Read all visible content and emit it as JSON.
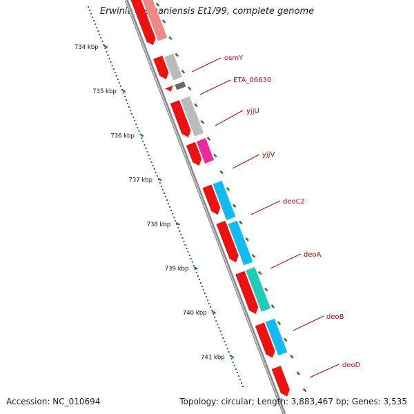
{
  "title": "Erwinia tasmaniensis Et1/99, complete genome",
  "footer": {
    "accession": "Accession: NC_010694",
    "topology": "Topology: circular; Length: 3,883,467 bp; Genes: 3,535"
  },
  "colors": {
    "forward_strand": "#ee1111",
    "backbone": "#8a8a8a",
    "tick": "#1e7a1e",
    "label": "#cc0000",
    "gene_light_red": "#f08888",
    "gene_grey": "#bbbbbb",
    "gene_dark_grey": "#666666",
    "gene_magenta": "#ee2a9a",
    "gene_cyan": "#11bbee",
    "gene_teal": "#22ccbb"
  },
  "kbp_ticks": [
    "734 kbp",
    "735 kbp",
    "736 kbp",
    "737 kbp",
    "738 kbp",
    "739 kbp",
    "740 kbp",
    "741 kbp"
  ],
  "genes": [
    {
      "name": "osmY",
      "color": "#bbbbbb"
    },
    {
      "name": "ETA_06630",
      "color": "#666666"
    },
    {
      "name": "yjjU",
      "color": "#bbbbbb"
    },
    {
      "name": "yjjV",
      "color": "#ee2a9a"
    },
    {
      "name": "deoC2",
      "color": "#11bbee"
    },
    {
      "name": "deoA",
      "color": "#11bbee"
    },
    {
      "name": "deoB",
      "color": "#22ccbb"
    },
    {
      "name": "deoD",
      "color": "#11bbee"
    }
  ]
}
